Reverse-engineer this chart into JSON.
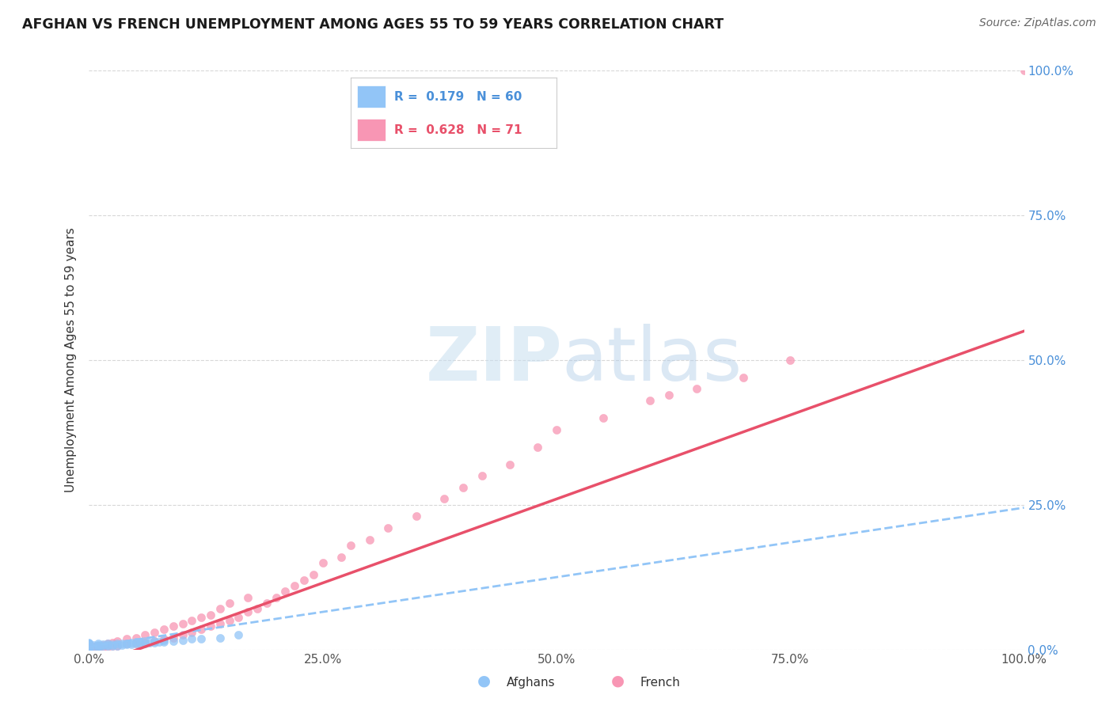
{
  "title": "AFGHAN VS FRENCH UNEMPLOYMENT AMONG AGES 55 TO 59 YEARS CORRELATION CHART",
  "source": "Source: ZipAtlas.com",
  "ylabel": "Unemployment Among Ages 55 to 59 years",
  "xlim": [
    0,
    1.0
  ],
  "ylim": [
    0,
    1.0
  ],
  "xtick_labels": [
    "0.0%",
    "25.0%",
    "50.0%",
    "75.0%",
    "100.0%"
  ],
  "xtick_vals": [
    0,
    0.25,
    0.5,
    0.75,
    1.0
  ],
  "ytick_labels_right": [
    "100.0%",
    "75.0%",
    "50.0%",
    "25.0%",
    "0.0%"
  ],
  "ytick_vals": [
    0.0,
    0.25,
    0.5,
    0.75,
    1.0
  ],
  "afghan_R": 0.179,
  "afghan_N": 60,
  "french_R": 0.628,
  "french_N": 71,
  "afghan_color": "#92c5f7",
  "french_color": "#f896b4",
  "french_line_color": "#e8506a",
  "watermark_zip": "ZIP",
  "watermark_atlas": "atlas",
  "background_color": "#ffffff",
  "grid_color": "#d8d8d8",
  "afghan_line_intercept": 0.005,
  "afghan_line_slope": 0.24,
  "french_line_intercept": -0.03,
  "french_line_slope": 0.58,
  "afghan_scatter_x": [
    0.0,
    0.0,
    0.0,
    0.0,
    0.0,
    0.0,
    0.0,
    0.0,
    0.0,
    0.0,
    0.0,
    0.0,
    0.0,
    0.0,
    0.0,
    0.0,
    0.0,
    0.0,
    0.0,
    0.0,
    0.005,
    0.005,
    0.01,
    0.01,
    0.01,
    0.01,
    0.012,
    0.015,
    0.015,
    0.02,
    0.02,
    0.02,
    0.025,
    0.025,
    0.03,
    0.03,
    0.035,
    0.035,
    0.04,
    0.04,
    0.045,
    0.045,
    0.05,
    0.05,
    0.055,
    0.055,
    0.06,
    0.06,
    0.065,
    0.07,
    0.07,
    0.075,
    0.08,
    0.08,
    0.09,
    0.1,
    0.11,
    0.12,
    0.14,
    0.16
  ],
  "afghan_scatter_y": [
    0.0,
    0.0,
    0.0,
    0.0,
    0.0,
    0.0,
    0.0,
    0.005,
    0.005,
    0.005,
    0.007,
    0.008,
    0.008,
    0.008,
    0.01,
    0.01,
    0.01,
    0.01,
    0.01,
    0.012,
    0.005,
    0.008,
    0.005,
    0.007,
    0.008,
    0.01,
    0.006,
    0.007,
    0.009,
    0.006,
    0.008,
    0.01,
    0.007,
    0.009,
    0.007,
    0.01,
    0.008,
    0.01,
    0.009,
    0.011,
    0.009,
    0.012,
    0.01,
    0.013,
    0.01,
    0.013,
    0.011,
    0.014,
    0.012,
    0.012,
    0.015,
    0.013,
    0.013,
    0.016,
    0.014,
    0.016,
    0.018,
    0.018,
    0.02,
    0.025
  ],
  "french_scatter_x": [
    0.0,
    0.0,
    0.0,
    0.0,
    0.0,
    0.005,
    0.005,
    0.01,
    0.01,
    0.01,
    0.015,
    0.015,
    0.02,
    0.02,
    0.025,
    0.025,
    0.03,
    0.03,
    0.04,
    0.04,
    0.05,
    0.05,
    0.06,
    0.06,
    0.07,
    0.07,
    0.08,
    0.08,
    0.09,
    0.09,
    0.1,
    0.1,
    0.11,
    0.11,
    0.12,
    0.12,
    0.13,
    0.13,
    0.14,
    0.14,
    0.15,
    0.15,
    0.16,
    0.17,
    0.17,
    0.18,
    0.19,
    0.2,
    0.21,
    0.22,
    0.23,
    0.24,
    0.25,
    0.27,
    0.28,
    0.3,
    0.32,
    0.35,
    0.38,
    0.4,
    0.42,
    0.45,
    0.48,
    0.5,
    0.55,
    0.6,
    0.62,
    0.65,
    0.7,
    0.75,
    1.0
  ],
  "french_scatter_y": [
    0.0,
    0.0,
    0.0,
    0.005,
    0.005,
    0.0,
    0.005,
    0.0,
    0.005,
    0.007,
    0.005,
    0.008,
    0.005,
    0.01,
    0.006,
    0.012,
    0.007,
    0.015,
    0.01,
    0.018,
    0.01,
    0.02,
    0.012,
    0.025,
    0.015,
    0.03,
    0.018,
    0.035,
    0.02,
    0.04,
    0.025,
    0.045,
    0.03,
    0.05,
    0.035,
    0.055,
    0.04,
    0.06,
    0.045,
    0.07,
    0.05,
    0.08,
    0.055,
    0.065,
    0.09,
    0.07,
    0.08,
    0.09,
    0.1,
    0.11,
    0.12,
    0.13,
    0.15,
    0.16,
    0.18,
    0.19,
    0.21,
    0.23,
    0.26,
    0.28,
    0.3,
    0.32,
    0.35,
    0.38,
    0.4,
    0.43,
    0.44,
    0.45,
    0.47,
    0.5,
    1.0
  ]
}
